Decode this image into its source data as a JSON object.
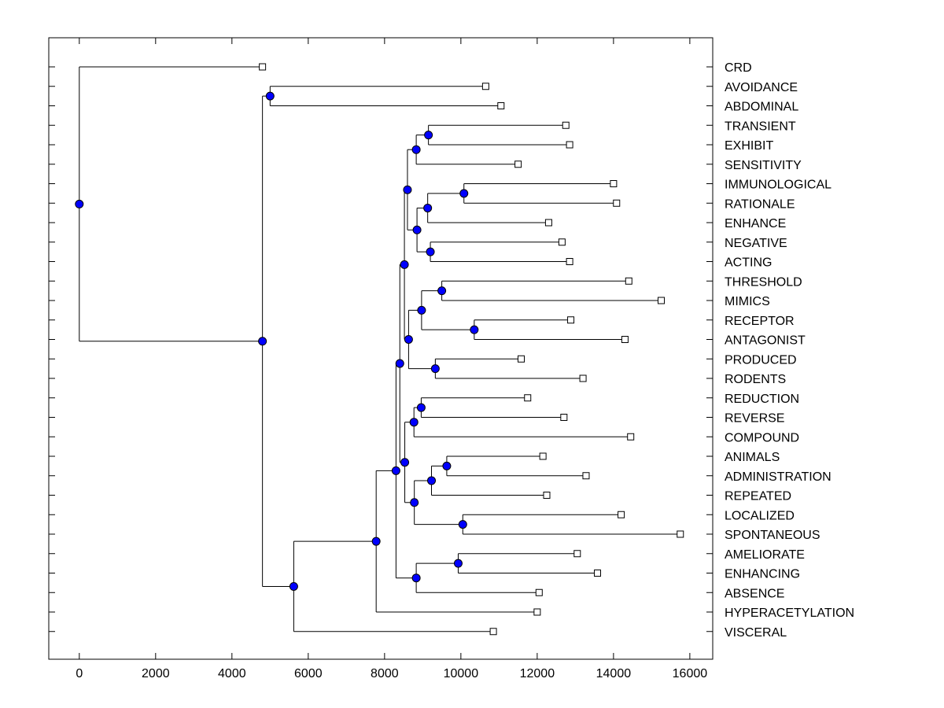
{
  "chart_data": {
    "type": "dendrogram",
    "title": "",
    "xlabel": "",
    "ylabel": "",
    "xlim": [
      -800,
      16600
    ],
    "xticks": [
      0,
      2000,
      4000,
      6000,
      8000,
      10000,
      12000,
      14000,
      16000
    ],
    "xtick_labels": [
      "0",
      "2000",
      "4000",
      "6000",
      "8000",
      "10000",
      "12000",
      "14000",
      "16000"
    ],
    "colors": {
      "node_fill": "#0000ff",
      "leaf_fill": "#ffffff",
      "line": "#000000"
    },
    "leaves": [
      {
        "label": "CRD",
        "x": 4800
      },
      {
        "label": "AVOIDANCE",
        "x": 10650
      },
      {
        "label": "ABDOMINAL",
        "x": 11050
      },
      {
        "label": "TRANSIENT",
        "x": 12750
      },
      {
        "label": "EXHIBIT",
        "x": 12850
      },
      {
        "label": "SENSITIVITY",
        "x": 11500
      },
      {
        "label": "IMMUNOLOGICAL",
        "x": 14000
      },
      {
        "label": "RATIONALE",
        "x": 14080
      },
      {
        "label": "ENHANCE",
        "x": 12300
      },
      {
        "label": "NEGATIVE",
        "x": 12650
      },
      {
        "label": "ACTING",
        "x": 12850
      },
      {
        "label": "THRESHOLD",
        "x": 14400
      },
      {
        "label": "MIMICS",
        "x": 15250
      },
      {
        "label": "RECEPTOR",
        "x": 12880
      },
      {
        "label": "ANTAGONIST",
        "x": 14300
      },
      {
        "label": "PRODUCED",
        "x": 11580
      },
      {
        "label": "RODENTS",
        "x": 13200
      },
      {
        "label": "REDUCTION",
        "x": 11750
      },
      {
        "label": "REVERSE",
        "x": 12700
      },
      {
        "label": "COMPOUND",
        "x": 14450
      },
      {
        "label": "ANIMALS",
        "x": 12150
      },
      {
        "label": "ADMINISTRATION",
        "x": 13280
      },
      {
        "label": "REPEATED",
        "x": 12250
      },
      {
        "label": "LOCALIZED",
        "x": 14200
      },
      {
        "label": "SPONTANEOUS",
        "x": 15750
      },
      {
        "label": "AMELIORATE",
        "x": 13050
      },
      {
        "label": "ENHANCING",
        "x": 13580
      },
      {
        "label": "ABSENCE",
        "x": 12050
      },
      {
        "label": "HYPERACETYLATION",
        "x": 12000
      },
      {
        "label": "VISCERAL",
        "x": 10850
      }
    ],
    "merges": [
      {
        "id": "n_avoid_abd",
        "x": 5000,
        "children": [
          "AVOIDANCE",
          "ABDOMINAL"
        ]
      },
      {
        "id": "n_trans_exh",
        "x": 9150,
        "children": [
          "TRANSIENT",
          "EXHIBIT"
        ]
      },
      {
        "id": "n_te_sens",
        "x": 8830,
        "children": [
          "n_trans_exh",
          "SENSITIVITY"
        ]
      },
      {
        "id": "n_imm_rat",
        "x": 10080,
        "children": [
          "IMMUNOLOGICAL",
          "RATIONALE"
        ]
      },
      {
        "id": "n_ir_enh",
        "x": 9130,
        "children": [
          "n_imm_rat",
          "ENHANCE"
        ]
      },
      {
        "id": "n_neg_act",
        "x": 9200,
        "children": [
          "NEGATIVE",
          "ACTING"
        ]
      },
      {
        "id": "n_ire_na",
        "x": 8850,
        "children": [
          "n_ir_enh",
          "n_neg_act"
        ]
      },
      {
        "id": "n_block1",
        "x": 8600,
        "children": [
          "n_te_sens",
          "n_ire_na"
        ]
      },
      {
        "id": "n_thr_mim",
        "x": 9500,
        "children": [
          "THRESHOLD",
          "MIMICS"
        ]
      },
      {
        "id": "n_rec_ant",
        "x": 10350,
        "children": [
          "RECEPTOR",
          "ANTAGONIST"
        ]
      },
      {
        "id": "n_tm_ra",
        "x": 8970,
        "children": [
          "n_thr_mim",
          "n_rec_ant"
        ]
      },
      {
        "id": "n_prod_rod",
        "x": 9330,
        "children": [
          "PRODUCED",
          "RODENTS"
        ]
      },
      {
        "id": "n_block2",
        "x": 8630,
        "children": [
          "n_tm_ra",
          "n_prod_rod"
        ]
      },
      {
        "id": "n_upper",
        "x": 8520,
        "children": [
          "n_block1",
          "n_block2"
        ]
      },
      {
        "id": "n_red_rev",
        "x": 8960,
        "children": [
          "REDUCTION",
          "REVERSE"
        ]
      },
      {
        "id": "n_rr_comp",
        "x": 8770,
        "children": [
          "n_red_rev",
          "COMPOUND"
        ]
      },
      {
        "id": "n_an_adm",
        "x": 9630,
        "children": [
          "ANIMALS",
          "ADMINISTRATION"
        ]
      },
      {
        "id": "n_aa_rep",
        "x": 9230,
        "children": [
          "n_an_adm",
          "REPEATED"
        ]
      },
      {
        "id": "n_loc_spon",
        "x": 10050,
        "children": [
          "LOCALIZED",
          "SPONTANEOUS"
        ]
      },
      {
        "id": "n_aar_ls",
        "x": 8780,
        "children": [
          "n_aa_rep",
          "n_loc_spon"
        ]
      },
      {
        "id": "n_block3",
        "x": 8530,
        "children": [
          "n_rr_comp",
          "n_aar_ls"
        ]
      },
      {
        "id": "n_mid",
        "x": 8400,
        "children": [
          "n_upper",
          "n_block3"
        ]
      },
      {
        "id": "n_ame_enh",
        "x": 9930,
        "children": [
          "AMELIORATE",
          "ENHANCING"
        ]
      },
      {
        "id": "n_ae_abs",
        "x": 8830,
        "children": [
          "n_ame_enh",
          "ABSENCE"
        ]
      },
      {
        "id": "n_big",
        "x": 8300,
        "children": [
          "n_mid",
          "n_ae_abs"
        ]
      },
      {
        "id": "n_big_hyper",
        "x": 7780,
        "children": [
          "n_big",
          "HYPERACETYLATION"
        ]
      },
      {
        "id": "n_bh_visc",
        "x": 5620,
        "children": [
          "n_big_hyper",
          "VISCERAL"
        ]
      },
      {
        "id": "n_second",
        "x": 4800,
        "children": [
          "n_avoid_abd",
          "n_bh_visc"
        ]
      },
      {
        "id": "n_root",
        "x": 0,
        "children": [
          "CRD",
          "n_second"
        ]
      }
    ]
  }
}
